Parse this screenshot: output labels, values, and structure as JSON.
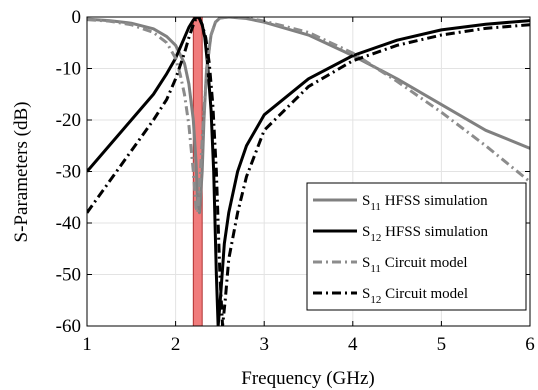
{
  "chart_data": {
    "type": "line",
    "xlabel": "Frequency (GHz)",
    "ylabel": "S-Parameters (dB)",
    "xlim": [
      1,
      6
    ],
    "ylim": [
      -60,
      0
    ],
    "xticks": [
      "1",
      "2",
      "3",
      "4",
      "5",
      "6"
    ],
    "yticks": [
      "0",
      "-10",
      "-20",
      "-30",
      "-40",
      "-50",
      "-60"
    ],
    "grid": true,
    "legend_position": "bottom-right",
    "highlight_band": {
      "x_start": 2.2,
      "x_end": 2.3,
      "color": "#ee6e6e"
    },
    "series": [
      {
        "name": "S11 HFSS simulation",
        "name_main": "S",
        "name_sub": "11",
        "name_rest": " HFSS simulation",
        "color": "#808080",
        "dash": "solid",
        "x": [
          1,
          1.25,
          1.5,
          1.75,
          1.9,
          2.0,
          2.1,
          2.15,
          2.2,
          2.23,
          2.25,
          2.27,
          2.3,
          2.32,
          2.35,
          2.4,
          2.45,
          2.5,
          2.6,
          2.8,
          3.0,
          3.5,
          4.0,
          4.5,
          5.0,
          5.5,
          6.0
        ],
        "y": [
          -0.4,
          -0.7,
          -1.2,
          -2.3,
          -3.8,
          -5.5,
          -9,
          -13,
          -20,
          -28,
          -36,
          -38,
          -30,
          -20,
          -10,
          -3.5,
          -1,
          -0.2,
          0,
          -0.3,
          -1,
          -3.5,
          -7.5,
          -12,
          -17,
          -22,
          -25.5
        ]
      },
      {
        "name": "S12 HFSS simulation",
        "name_main": "S",
        "name_sub": "12",
        "name_rest": " HFSS simulation",
        "color": "#000000",
        "dash": "solid",
        "x": [
          1,
          1.25,
          1.5,
          1.75,
          1.9,
          2.0,
          2.1,
          2.15,
          2.2,
          2.23,
          2.25,
          2.27,
          2.3,
          2.33,
          2.36,
          2.4,
          2.43,
          2.46,
          2.48,
          2.5,
          2.55,
          2.6,
          2.7,
          2.8,
          3.0,
          3.5,
          4.0,
          4.5,
          5.0,
          5.5,
          6.0
        ],
        "y": [
          -30,
          -25,
          -20,
          -15,
          -11,
          -8,
          -4,
          -2,
          -0.6,
          -0.1,
          0,
          -0.3,
          -1.5,
          -4,
          -9,
          -18,
          -30,
          -50,
          -60,
          -56,
          -44,
          -38,
          -30,
          -25,
          -19,
          -12,
          -7.5,
          -4.5,
          -2.5,
          -1.4,
          -0.7
        ]
      },
      {
        "name": "S11 Circuit model",
        "name_main": "S",
        "name_sub": "11",
        "name_rest": " Circuit model",
        "color": "#8c8c8c",
        "dash": "dashdot",
        "x": [
          1,
          1.25,
          1.5,
          1.75,
          1.9,
          2.0,
          2.05,
          2.1,
          2.15,
          2.2,
          2.23,
          2.25,
          2.28,
          2.32,
          2.36,
          2.4,
          2.45,
          2.5,
          2.6,
          2.8,
          3.0,
          3.5,
          4.0,
          4.5,
          5.0,
          5.5,
          6.0
        ],
        "y": [
          -0.5,
          -0.8,
          -1.5,
          -3,
          -5,
          -8,
          -11,
          -15,
          -21,
          -30,
          -37,
          -38,
          -30,
          -18,
          -9,
          -3.5,
          -1,
          -0.2,
          0,
          -0.2,
          -0.8,
          -3,
          -7,
          -12.5,
          -18.5,
          -25,
          -32
        ]
      },
      {
        "name": "S12 Circuit model",
        "name_main": "S",
        "name_sub": "12",
        "name_rest": " Circuit model",
        "color": "#000000",
        "dash": "dashdot",
        "x": [
          1,
          1.25,
          1.5,
          1.75,
          1.9,
          2.0,
          2.05,
          2.1,
          2.15,
          2.2,
          2.23,
          2.25,
          2.27,
          2.3,
          2.34,
          2.38,
          2.42,
          2.46,
          2.5,
          2.53,
          2.56,
          2.6,
          2.7,
          2.8,
          3.0,
          3.5,
          4.0,
          4.5,
          5.0,
          5.5,
          6.0
        ],
        "y": [
          -38,
          -32,
          -26,
          -20,
          -16,
          -12,
          -9.5,
          -7,
          -4,
          -1.5,
          -0.3,
          0,
          -0.3,
          -1.5,
          -4,
          -9,
          -17,
          -30,
          -50,
          -60,
          -55,
          -47,
          -38,
          -31,
          -22,
          -13.5,
          -8.5,
          -5.5,
          -3.5,
          -2.2,
          -1.5
        ]
      }
    ]
  }
}
